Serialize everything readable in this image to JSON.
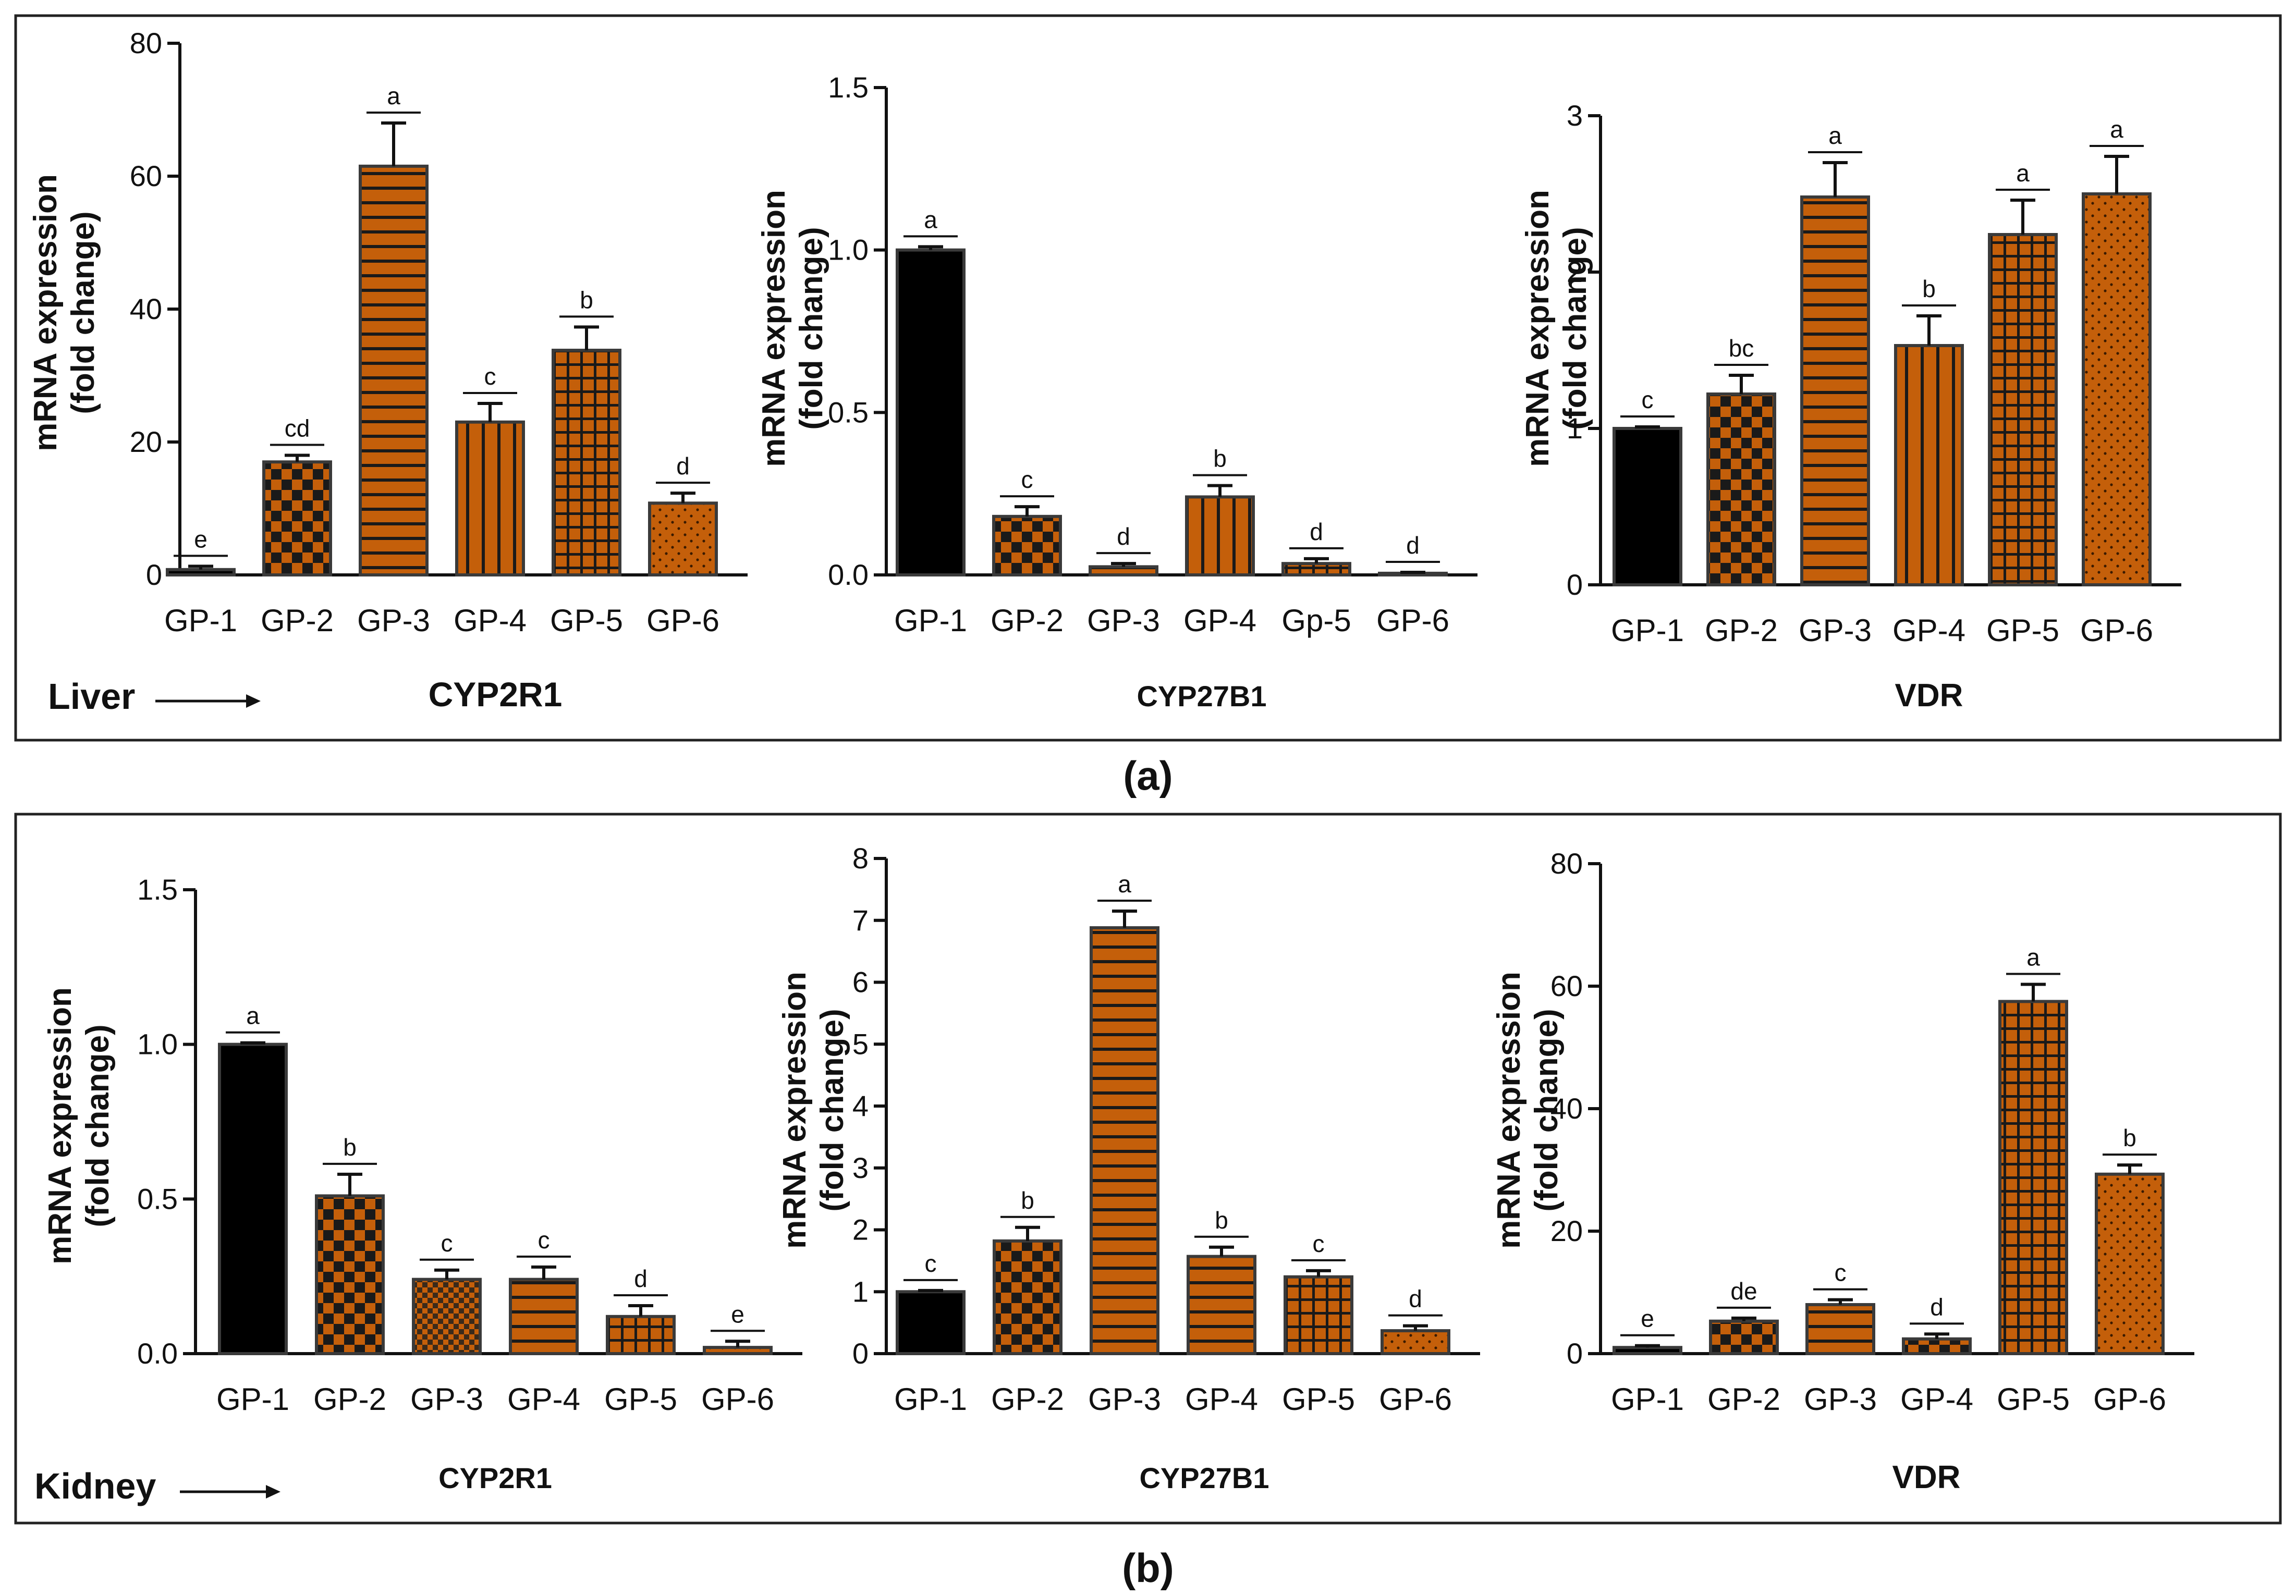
{
  "ylabel_line1": "mRNA expression",
  "ylabel_line2": "(fold change)",
  "colors": {
    "control": "#000000",
    "accent": "#c45f0a",
    "pattern_dark": "#1a1a1a",
    "frame": "#222222"
  },
  "panels": [
    {
      "caption": "(a)",
      "tissue": "Liver"
    },
    {
      "caption": "(b)",
      "tissue": "Kidney"
    }
  ],
  "chart_data": [
    {
      "type": "bar",
      "panel": 0,
      "title": "CYP2R1",
      "tissue": "Liver",
      "ylabel": "mRNA expression (fold change)",
      "categories": [
        "GP-1",
        "GP-2",
        "GP-3",
        "GP-4",
        "GP-5",
        "GP-6"
      ],
      "values": [
        0.8,
        17,
        61.5,
        23,
        33.8,
        10.8
      ],
      "errors": [
        0.5,
        1,
        6.5,
        2.8,
        3.5,
        1.5
      ],
      "significance": [
        "e",
        "cd",
        "a",
        "c",
        "b",
        "d"
      ],
      "ylim": [
        0,
        80
      ],
      "yticks": [
        "0",
        "20",
        "40",
        "60",
        "80"
      ]
    },
    {
      "type": "bar",
      "panel": 0,
      "title": "CYP27B1",
      "tissue": "Liver",
      "ylabel": "mRNA expression (fold change)",
      "categories": [
        "GP-1",
        "GP-2",
        "GP-3",
        "GP-4",
        "Gp-5",
        "GP-6"
      ],
      "values": [
        1.0,
        0.18,
        0.025,
        0.24,
        0.035,
        0.005
      ],
      "errors": [
        0.01,
        0.03,
        0.01,
        0.035,
        0.015,
        0.003
      ],
      "significance": [
        "a",
        "c",
        "d",
        "b",
        "d",
        "d"
      ],
      "ylim": [
        0,
        1.5
      ],
      "yticks": [
        "0.0",
        "0.5",
        "1.0",
        "1.5"
      ]
    },
    {
      "type": "bar",
      "panel": 0,
      "title": "VDR",
      "tissue": "Liver",
      "ylabel": "mRNA expression (fold change)",
      "categories": [
        "GP-1",
        "GP-2",
        "GP-3",
        "GP-4",
        "GP-5",
        "GP-6"
      ],
      "values": [
        1.0,
        1.22,
        2.48,
        1.53,
        2.24,
        2.5
      ],
      "errors": [
        0.01,
        0.12,
        0.22,
        0.19,
        0.22,
        0.24
      ],
      "significance": [
        "c",
        "bc",
        "a",
        "b",
        "a",
        "a"
      ],
      "ylim": [
        0,
        3
      ],
      "yticks": [
        "0",
        "1",
        "2",
        "3"
      ]
    },
    {
      "type": "bar",
      "panel": 1,
      "title": "CYP2R1",
      "tissue": "Kidney",
      "ylabel": "mRNA expression (fold change)",
      "categories": [
        "GP-1",
        "GP-2",
        "GP-3",
        "GP-4",
        "GP-5",
        "GP-6"
      ],
      "values": [
        1.0,
        0.51,
        0.24,
        0.24,
        0.12,
        0.02
      ],
      "errors": [
        0.005,
        0.07,
        0.03,
        0.04,
        0.035,
        0.02
      ],
      "significance": [
        "a",
        "b",
        "c",
        "c",
        "d",
        "e"
      ],
      "ylim": [
        0,
        1.5
      ],
      "yticks": [
        "0.0",
        "0.5",
        "1.0",
        "1.5"
      ]
    },
    {
      "type": "bar",
      "panel": 1,
      "title": "CYP27B1",
      "tissue": "Kidney",
      "ylabel": "mRNA expression (fold change)",
      "categories": [
        "GP-1",
        "GP-2",
        "GP-3",
        "GP-4",
        "GP-5",
        "GP-6"
      ],
      "values": [
        1.0,
        1.82,
        6.88,
        1.57,
        1.24,
        0.37
      ],
      "errors": [
        0.02,
        0.22,
        0.27,
        0.15,
        0.1,
        0.08
      ],
      "significance": [
        "c",
        "b",
        "a",
        "b",
        "c",
        "d"
      ],
      "ylim": [
        0,
        8
      ],
      "yticks": [
        "0",
        "1",
        "2",
        "3",
        "4",
        "5",
        "6",
        "7",
        "8"
      ]
    },
    {
      "type": "bar",
      "panel": 1,
      "title": "VDR",
      "tissue": "Kidney",
      "ylabel": "mRNA expression (fold change)",
      "categories": [
        "GP-1",
        "GP-2",
        "GP-3",
        "GP-4",
        "GP-5",
        "GP-6"
      ],
      "values": [
        1.0,
        5.3,
        8.0,
        2.4,
        57.5,
        29.3
      ],
      "errors": [
        0.3,
        0.5,
        0.8,
        0.8,
        2.8,
        1.5
      ],
      "significance": [
        "e",
        "de",
        "c",
        "d",
        "a",
        "b"
      ],
      "ylim": [
        0,
        80
      ],
      "yticks": [
        "0",
        "20",
        "40",
        "60",
        "80"
      ]
    }
  ]
}
